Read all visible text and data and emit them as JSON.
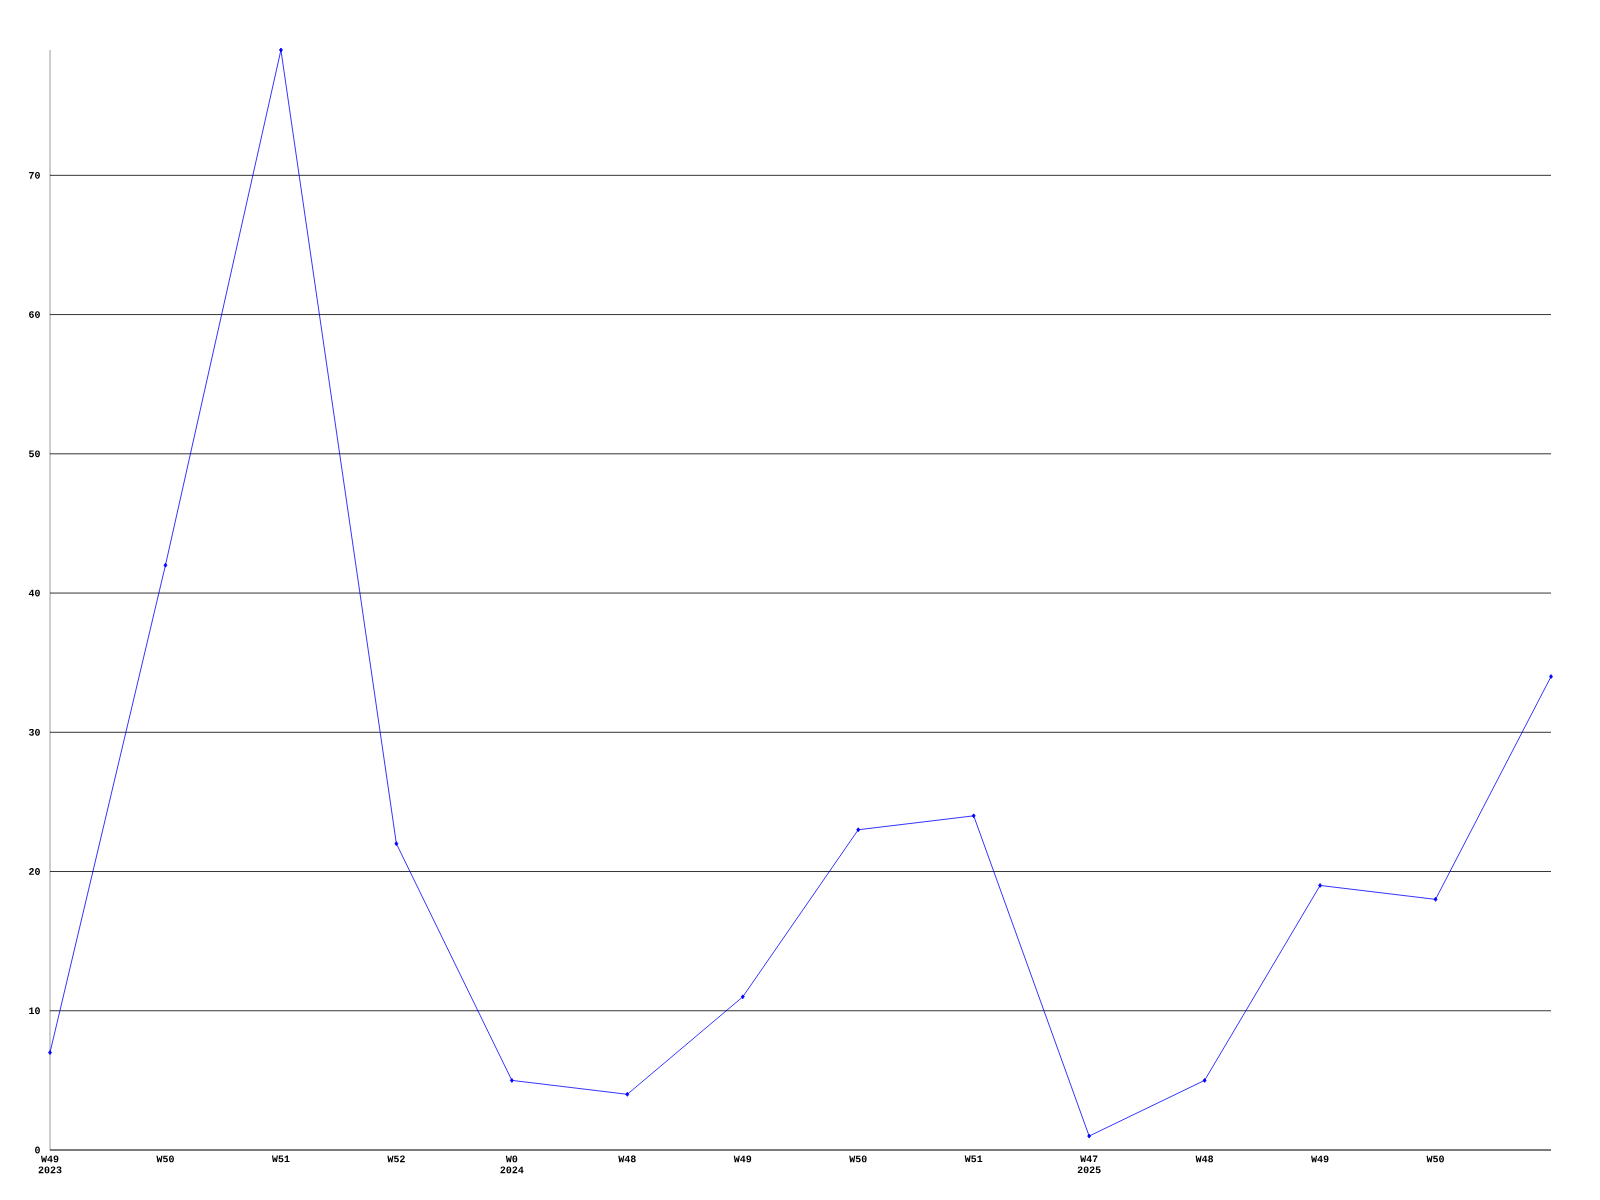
{
  "chart_data": {
    "type": "line",
    "categories": [
      "W49 2023",
      "W50",
      "W51",
      "W52",
      "W0 2024",
      "W48",
      "W49",
      "W50",
      "W51",
      "W47 2025",
      "W48",
      "W49",
      "W50",
      null
    ],
    "series": [
      {
        "color": "#0000ff",
        "values": [
          7,
          42,
          79,
          22,
          5,
          4,
          11,
          23,
          24,
          1,
          5,
          19,
          18,
          34
        ]
      }
    ],
    "ylim": [
      0,
      79
    ],
    "yticks": [
      0,
      10,
      20,
      30,
      40,
      50,
      60,
      70
    ],
    "grid": "y",
    "marker": "diamond",
    "line_style": "solid"
  }
}
